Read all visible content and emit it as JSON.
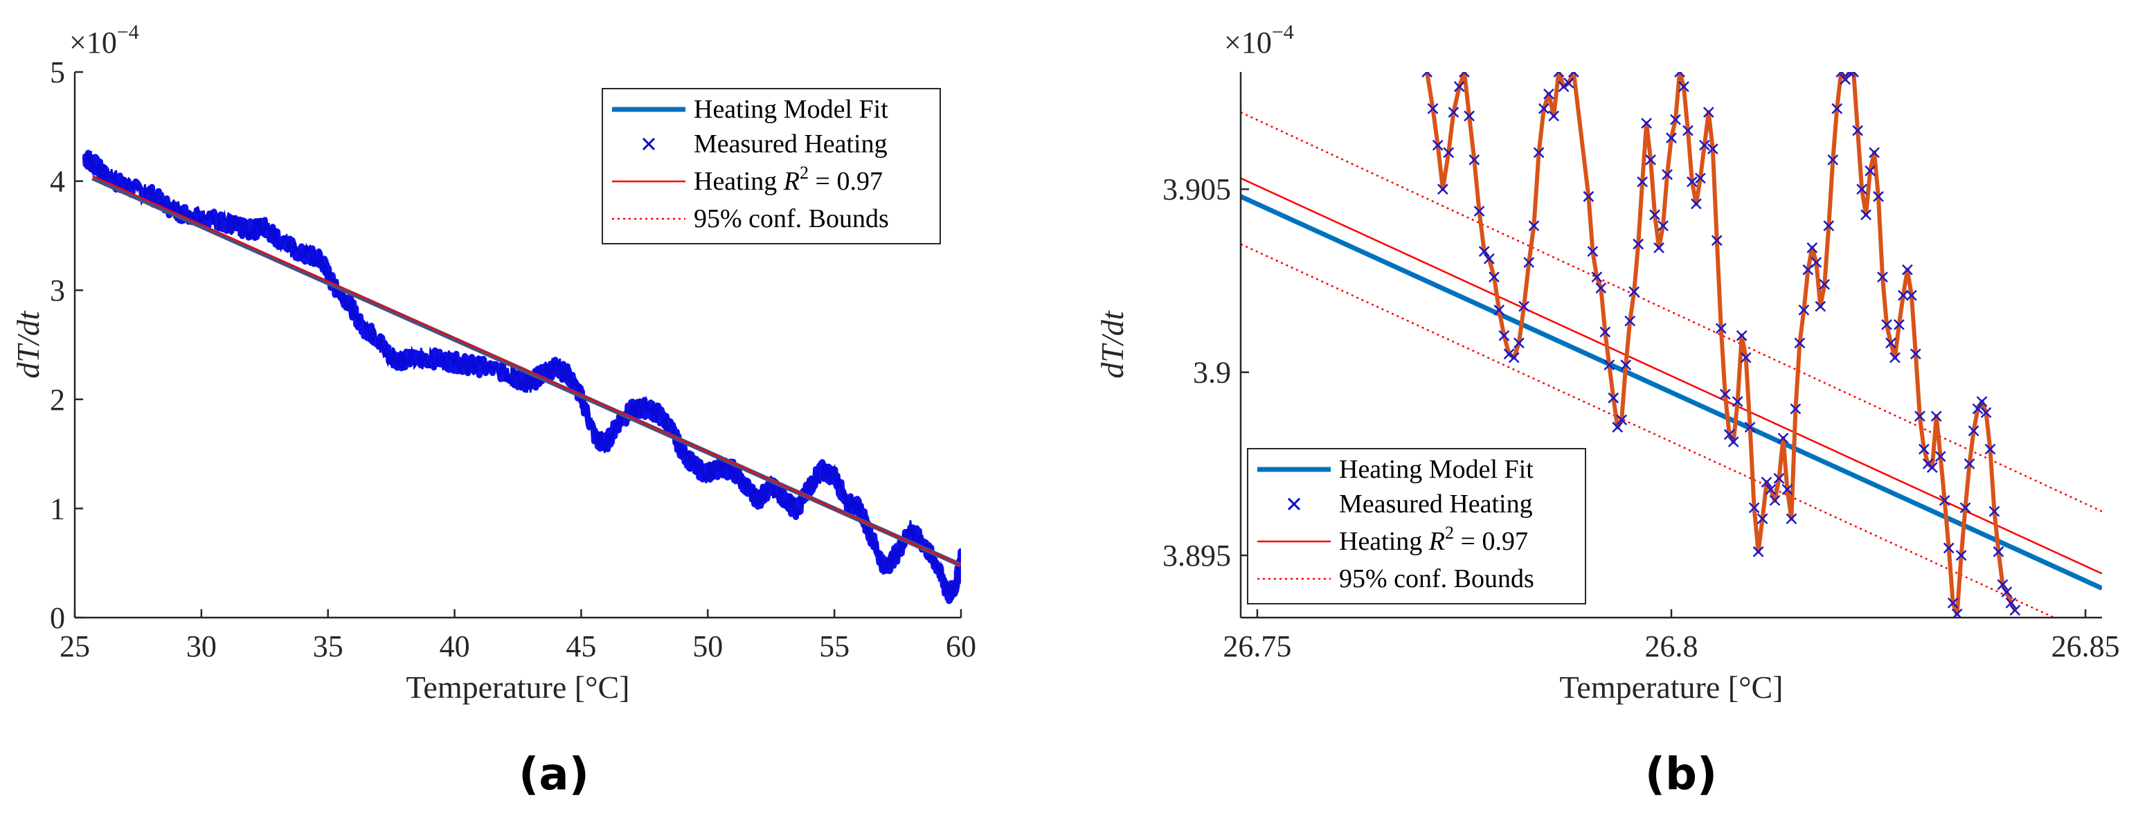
{
  "chart_data": [
    {
      "type": "scatter",
      "panel_label": "(a)",
      "xlabel": "Temperature [°C]",
      "ylabel": "dT/dt",
      "exponent_label": "×10",
      "exponent_power": "−4",
      "xlim": [
        25,
        60
      ],
      "ylim": [
        0,
        5
      ],
      "xticks": [
        25,
        30,
        35,
        40,
        45,
        50,
        55,
        60
      ],
      "yticks": [
        0,
        1,
        2,
        3,
        4,
        5
      ],
      "xtick_labels": [
        "25",
        "30",
        "35",
        "40",
        "45",
        "50",
        "55",
        "60"
      ],
      "ytick_labels": [
        "0",
        "1",
        "2",
        "3",
        "4",
        "5"
      ],
      "legend_position": "top-right",
      "legend": [
        {
          "label": "Heating Model Fit",
          "style": "thick-line",
          "color": "#0072BD"
        },
        {
          "label": "Measured Heating",
          "style": "x-marker",
          "color": "#0000CC"
        },
        {
          "label": "Heating R² = 0.97",
          "label_prefix": "Heating ",
          "label_var": "R",
          "label_sup": "2",
          "label_suffix": " = 0.97",
          "style": "thin-line",
          "color": "#FF0000"
        },
        {
          "label": "95% conf. Bounds",
          "style": "dotted-line",
          "color": "#FF0000"
        }
      ],
      "series": [
        {
          "name": "Measured Heating",
          "color": "#1010EE",
          "points": [
            [
              25.4,
              4.22
            ],
            [
              25.8,
              4.15
            ],
            [
              26.2,
              4.05
            ],
            [
              27,
              3.95
            ],
            [
              28,
              3.88
            ],
            [
              29,
              3.72
            ],
            [
              30,
              3.68
            ],
            [
              31,
              3.62
            ],
            [
              31.5,
              3.57
            ],
            [
              32,
              3.55
            ],
            [
              32.5,
              3.58
            ],
            [
              33,
              3.48
            ],
            [
              34,
              3.32
            ],
            [
              34.7,
              3.3
            ],
            [
              35.2,
              3.05
            ],
            [
              35.8,
              2.9
            ],
            [
              36.3,
              2.68
            ],
            [
              37,
              2.55
            ],
            [
              37.5,
              2.38
            ],
            [
              38,
              2.36
            ],
            [
              39,
              2.38
            ],
            [
              40,
              2.34
            ],
            [
              40.5,
              2.32
            ],
            [
              41,
              2.3
            ],
            [
              42,
              2.25
            ],
            [
              42.5,
              2.18
            ],
            [
              43,
              2.15
            ],
            [
              43.5,
              2.24
            ],
            [
              44,
              2.3
            ],
            [
              44.5,
              2.22
            ],
            [
              45,
              2.02
            ],
            [
              45.6,
              1.62
            ],
            [
              46,
              1.6
            ],
            [
              46.5,
              1.8
            ],
            [
              47,
              1.9
            ],
            [
              47.5,
              1.92
            ],
            [
              48,
              1.88
            ],
            [
              48.5,
              1.75
            ],
            [
              49,
              1.52
            ],
            [
              49.5,
              1.38
            ],
            [
              50,
              1.32
            ],
            [
              50.5,
              1.38
            ],
            [
              51,
              1.35
            ],
            [
              51.5,
              1.2
            ],
            [
              52,
              1.08
            ],
            [
              52.5,
              1.2
            ],
            [
              53,
              1.1
            ],
            [
              53.5,
              0.98
            ],
            [
              54,
              1.2
            ],
            [
              54.5,
              1.35
            ],
            [
              55,
              1.3
            ],
            [
              55.5,
              1.05
            ],
            [
              56,
              1.0
            ],
            [
              56.5,
              0.72
            ],
            [
              57,
              0.45
            ],
            [
              57.5,
              0.6
            ],
            [
              58,
              0.8
            ],
            [
              58.5,
              0.68
            ],
            [
              59,
              0.5
            ],
            [
              59.5,
              0.2
            ],
            [
              59.8,
              0.3
            ],
            [
              60,
              0.55
            ]
          ]
        },
        {
          "name": "Heating Model Fit",
          "color": "#4A4F80",
          "x": [
            25.7,
            60
          ],
          "y": [
            4.03,
            0.48
          ]
        },
        {
          "name": "Heating R² = 0.97",
          "color": "#FF0000",
          "x": [
            25.7,
            60
          ],
          "y": [
            4.05,
            0.48
          ]
        }
      ]
    },
    {
      "type": "line",
      "panel_label": "(b)",
      "xlabel": "Temperature [°C]",
      "ylabel": "dT/dt",
      "exponent_label": "×10",
      "exponent_power": "−4",
      "xlim": [
        26.748,
        26.852
      ],
      "ylim": [
        3.8933,
        3.9082
      ],
      "xticks": [
        26.75,
        26.8,
        26.85
      ],
      "yticks": [
        3.895,
        3.9,
        3.905
      ],
      "xtick_labels": [
        "26.75",
        "26.8",
        "26.85"
      ],
      "ytick_labels": [
        "3.895",
        "3.9",
        "3.905"
      ],
      "legend_position": "bottom-left",
      "legend": [
        {
          "label": "Heating Model Fit",
          "style": "thick-line",
          "color": "#0072BD"
        },
        {
          "label": "Measured Heating",
          "style": "x-marker",
          "color": "#0000CC"
        },
        {
          "label": "Heating R² = 0.97",
          "label_prefix": "Heating ",
          "label_var": "R",
          "label_sup": "2",
          "label_suffix": " = 0.97",
          "style": "thin-line",
          "color": "#FF0000"
        },
        {
          "label": "95% conf. Bounds",
          "style": "dotted-line",
          "color": "#FF0000"
        }
      ],
      "series": [
        {
          "name": "Heating Model Fit",
          "color": "#0072BD",
          "x": [
            26.748,
            26.852
          ],
          "y": [
            3.9048,
            3.8941
          ]
        },
        {
          "name": "Heating R² = 0.97",
          "color": "#FF0000",
          "x": [
            26.748,
            26.852
          ],
          "y": [
            3.9053,
            3.8945
          ]
        },
        {
          "name": "95% upper bound",
          "color": "#FF0000",
          "x": [
            26.748,
            26.852
          ],
          "y": [
            3.9071,
            3.8962
          ]
        },
        {
          "name": "95% lower bound",
          "color": "#FF0000",
          "x": [
            26.748,
            26.852
          ],
          "y": [
            3.9035,
            3.8927
          ]
        },
        {
          "name": "Measured Heating",
          "color": "#D95319",
          "marker_color": "#1A1AC8",
          "points": [
            [
              26.7705,
              3.9082
            ],
            [
              26.7712,
              3.9072
            ],
            [
              26.7718,
              3.9062
            ],
            [
              26.7724,
              3.905
            ],
            [
              26.7731,
              3.906
            ],
            [
              26.7737,
              3.9071
            ],
            [
              26.7744,
              3.9078
            ],
            [
              26.775,
              3.9082
            ],
            [
              26.7756,
              3.907
            ],
            [
              26.7762,
              3.9058
            ],
            [
              26.7768,
              3.9044
            ],
            [
              26.7774,
              3.9033
            ],
            [
              26.778,
              3.9031
            ],
            [
              26.7786,
              3.9026
            ],
            [
              26.7792,
              3.9017
            ],
            [
              26.7798,
              3.901
            ],
            [
              26.7804,
              3.9005
            ],
            [
              26.781,
              3.9004
            ],
            [
              26.7816,
              3.9008
            ],
            [
              26.7822,
              3.9018
            ],
            [
              26.7828,
              3.903
            ],
            [
              26.7834,
              3.904
            ],
            [
              26.784,
              3.906
            ],
            [
              26.7846,
              3.9072
            ],
            [
              26.7852,
              3.9076
            ],
            [
              26.7858,
              3.907
            ],
            [
              26.7864,
              3.9082
            ],
            [
              26.787,
              3.9078
            ],
            [
              26.7876,
              3.9079
            ],
            [
              26.7882,
              3.9082
            ],
            [
              26.79,
              3.9048
            ],
            [
              26.7905,
              3.9033
            ],
            [
              26.791,
              3.9026
            ],
            [
              26.7915,
              3.9023
            ],
            [
              26.792,
              3.9011
            ],
            [
              26.7925,
              3.9002
            ],
            [
              26.793,
              3.8993
            ],
            [
              26.7935,
              3.8985
            ],
            [
              26.794,
              3.8987
            ],
            [
              26.7945,
              3.9002
            ],
            [
              26.795,
              3.9014
            ],
            [
              26.7955,
              3.9022
            ],
            [
              26.796,
              3.9035
            ],
            [
              26.7965,
              3.9052
            ],
            [
              26.797,
              3.9068
            ],
            [
              26.7975,
              3.9058
            ],
            [
              26.798,
              3.9043
            ],
            [
              26.7985,
              3.9034
            ],
            [
              26.799,
              3.904
            ],
            [
              26.7995,
              3.9054
            ],
            [
              26.8,
              3.9064
            ],
            [
              26.8005,
              3.9069
            ],
            [
              26.801,
              3.9082
            ],
            [
              26.8015,
              3.9078
            ],
            [
              26.802,
              3.9066
            ],
            [
              26.8025,
              3.9052
            ],
            [
              26.803,
              3.9046
            ],
            [
              26.8035,
              3.9053
            ],
            [
              26.804,
              3.9062
            ],
            [
              26.8045,
              3.9071
            ],
            [
              26.805,
              3.9061
            ],
            [
              26.8055,
              3.9036
            ],
            [
              26.806,
              3.9012
            ],
            [
              26.8065,
              3.8994
            ],
            [
              26.807,
              3.8983
            ],
            [
              26.8075,
              3.8981
            ],
            [
              26.808,
              3.8992
            ],
            [
              26.8085,
              3.901
            ],
            [
              26.809,
              3.9004
            ],
            [
              26.8095,
              3.8985
            ],
            [
              26.81,
              3.8963
            ],
            [
              26.8105,
              3.8951
            ],
            [
              26.811,
              3.896
            ],
            [
              26.8115,
              3.897
            ],
            [
              26.812,
              3.8968
            ],
            [
              26.8125,
              3.8965
            ],
            [
              26.813,
              3.8971
            ],
            [
              26.8135,
              3.8982
            ],
            [
              26.814,
              3.8968
            ],
            [
              26.8145,
              3.896
            ],
            [
              26.815,
              3.899
            ],
            [
              26.8155,
              3.9008
            ],
            [
              26.816,
              3.9017
            ],
            [
              26.8165,
              3.9028
            ],
            [
              26.817,
              3.9034
            ],
            [
              26.8175,
              3.903
            ],
            [
              26.818,
              3.9018
            ],
            [
              26.8185,
              3.9024
            ],
            [
              26.819,
              3.904
            ],
            [
              26.8195,
              3.9058
            ],
            [
              26.82,
              3.9072
            ],
            [
              26.8205,
              3.9082
            ],
            [
              26.821,
              3.908
            ],
            [
              26.8215,
              3.9082
            ],
            [
              26.822,
              3.9082
            ],
            [
              26.8225,
              3.9066
            ],
            [
              26.823,
              3.905
            ],
            [
              26.8235,
              3.9043
            ],
            [
              26.824,
              3.9055
            ],
            [
              26.8245,
              3.906
            ],
            [
              26.825,
              3.9048
            ],
            [
              26.8255,
              3.9026
            ],
            [
              26.826,
              3.9013
            ],
            [
              26.8265,
              3.9008
            ],
            [
              26.827,
              3.9004
            ],
            [
              26.8275,
              3.9013
            ],
            [
              26.828,
              3.9021
            ],
            [
              26.8285,
              3.9028
            ],
            [
              26.829,
              3.9021
            ],
            [
              26.8295,
              3.9005
            ],
            [
              26.83,
              3.8988
            ],
            [
              26.8305,
              3.8979
            ],
            [
              26.831,
              3.8975
            ],
            [
              26.8315,
              3.8974
            ],
            [
              26.832,
              3.8988
            ],
            [
              26.8325,
              3.8977
            ],
            [
              26.833,
              3.8965
            ],
            [
              26.8335,
              3.8952
            ],
            [
              26.834,
              3.8937
            ],
            [
              26.8345,
              3.8934
            ],
            [
              26.835,
              3.895
            ],
            [
              26.8355,
              3.8963
            ],
            [
              26.836,
              3.8975
            ],
            [
              26.8365,
              3.8984
            ],
            [
              26.837,
              3.899
            ],
            [
              26.8375,
              3.8992
            ],
            [
              26.838,
              3.8989
            ],
            [
              26.8385,
              3.8979
            ],
            [
              26.839,
              3.8962
            ],
            [
              26.8395,
              3.8951
            ],
            [
              26.84,
              3.8942
            ],
            [
              26.8405,
              3.894
            ],
            [
              26.841,
              3.8937
            ],
            [
              26.8415,
              3.8935
            ]
          ]
        }
      ]
    }
  ]
}
